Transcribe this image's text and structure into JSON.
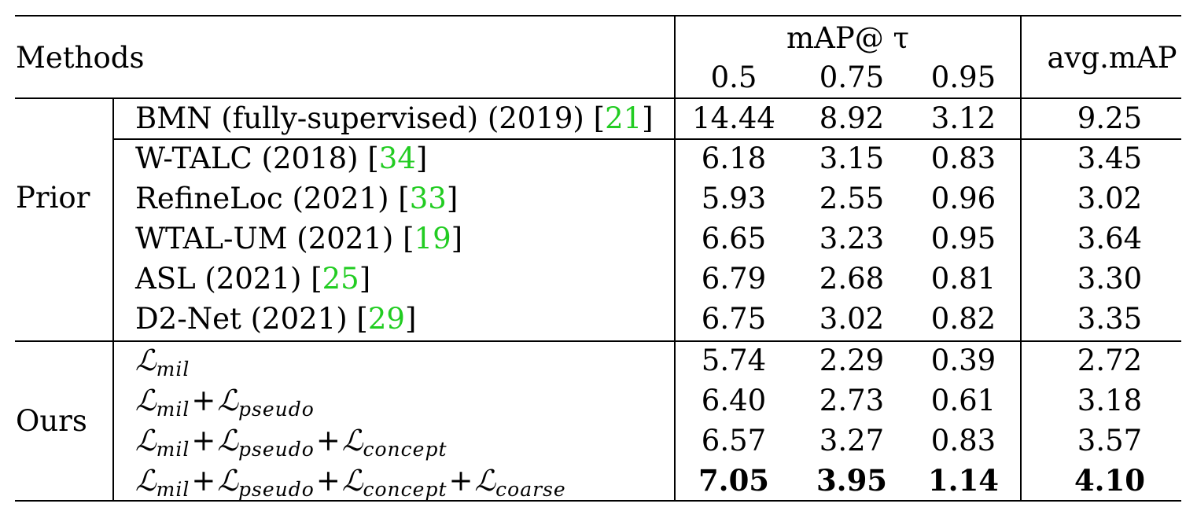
{
  "header": {
    "methods": "Methods",
    "map_label": "mAP@ τ",
    "thresholds": [
      "0.5",
      "0.75",
      "0.95"
    ],
    "avg": "avg.mAP"
  },
  "groups": {
    "prior": "Prior",
    "ours": "Ours"
  },
  "prior_rows": [
    {
      "method": "BMN (fully-supervised) (2019) [",
      "cite": "21",
      "close": "]",
      "v": [
        "14.44",
        "8.92",
        "3.12"
      ],
      "avg": "9.25"
    },
    {
      "method": "W-TALC (2018) [",
      "cite": "34",
      "close": "]",
      "v": [
        "6.18",
        "3.15",
        "0.83"
      ],
      "avg": "3.45"
    },
    {
      "method": "RefineLoc (2021) [",
      "cite": "33",
      "close": "]",
      "v": [
        "5.93",
        "2.55",
        "0.96"
      ],
      "avg": "3.02"
    },
    {
      "method": "WTAL-UM (2021) [",
      "cite": "19",
      "close": "]",
      "v": [
        "6.65",
        "3.23",
        "0.95"
      ],
      "avg": "3.64"
    },
    {
      "method": "ASL (2021) [",
      "cite": "25",
      "close": "]",
      "v": [
        "6.79",
        "2.68",
        "0.81"
      ],
      "avg": "3.30"
    },
    {
      "method": "D2-Net (2021) [",
      "cite": "29",
      "close": "]",
      "v": [
        "6.75",
        "3.02",
        "0.82"
      ],
      "avg": "3.35"
    }
  ],
  "loss_symbol": "ℒ",
  "plus": "+",
  "ours_rows": [
    {
      "terms": [
        "mil"
      ],
      "v": [
        "5.74",
        "2.29",
        "0.39"
      ],
      "avg": "2.72"
    },
    {
      "terms": [
        "mil",
        "pseudo"
      ],
      "v": [
        "6.40",
        "2.73",
        "0.61"
      ],
      "avg": "3.18"
    },
    {
      "terms": [
        "mil",
        "pseudo",
        "concept"
      ],
      "v": [
        "6.57",
        "3.27",
        "0.83"
      ],
      "avg": "3.57"
    },
    {
      "terms": [
        "mil",
        "pseudo",
        "concept",
        "coarse"
      ],
      "v": [
        "7.05",
        "3.95",
        "1.14"
      ],
      "avg": "4.10",
      "bold": true
    }
  ]
}
